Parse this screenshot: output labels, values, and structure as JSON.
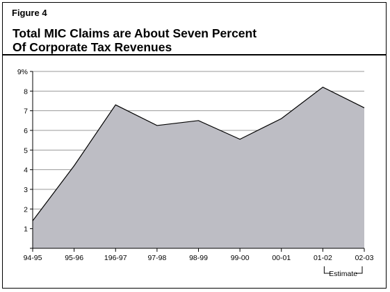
{
  "figure": {
    "label": "Figure 4",
    "title_lines": [
      "Total MIC Claims are About Seven Percent",
      "Of Corporate Tax Revenues"
    ]
  },
  "chart_data": {
    "type": "area",
    "categories": [
      "94-95",
      "95-96",
      "196-97",
      "97-98",
      "98-99",
      "99-00",
      "00-01",
      "01-02",
      "02-03"
    ],
    "series": [
      {
        "values": [
          1.4,
          4.2,
          7.3,
          6.25,
          6.5,
          5.55,
          6.6,
          8.2,
          7.15
        ]
      }
    ],
    "yticks": [
      "",
      "1",
      "2",
      "3",
      "4",
      "5",
      "6",
      "7",
      "8",
      "9%"
    ],
    "ylim": [
      0,
      9
    ],
    "grid": true,
    "annotation": {
      "text": "Estimate",
      "applies_to": [
        "01-02",
        "02-03"
      ]
    },
    "colors": {
      "fill": "#bdbdc4",
      "line": "#000000",
      "grid": "#999999"
    }
  }
}
